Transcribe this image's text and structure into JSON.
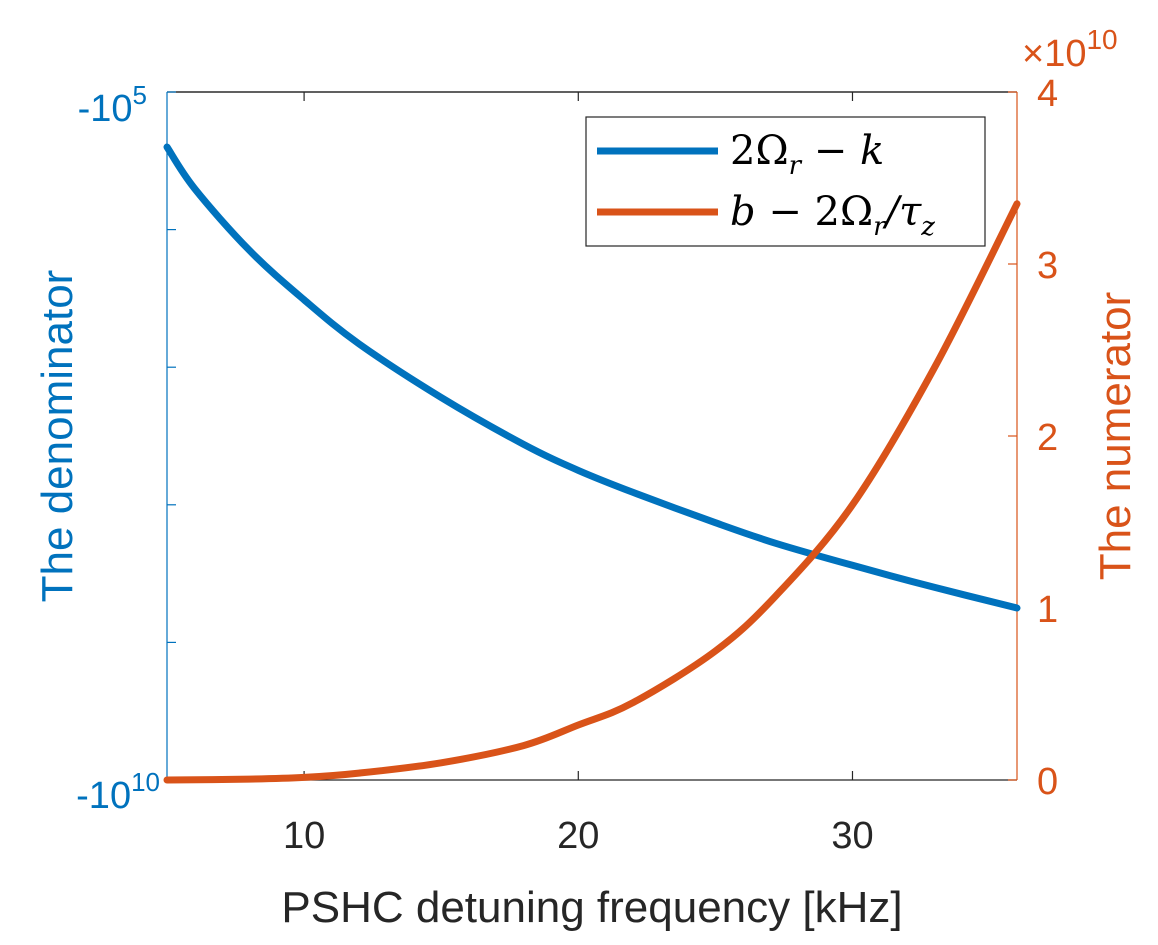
{
  "chart_data": {
    "type": "line",
    "xlabel": "PSHC detuning frequency [kHz]",
    "xlim": [
      5,
      36
    ],
    "xticks": [
      10,
      20,
      30
    ],
    "left_axis": {
      "label": "The denominator",
      "color": "#0072BD",
      "scale": "log (negative values)",
      "top_label_base": "-10",
      "top_label_exp": "5",
      "bottom_label_base": "-10",
      "bottom_label_exp": "10",
      "ylim": [
        -100000,
        -10000000000
      ],
      "log10_magnitude_range": [
        5,
        10
      ],
      "minor_ticks_log10": [
        6,
        7,
        8,
        9
      ]
    },
    "right_axis": {
      "label": "The numerator",
      "color": "#D95319",
      "multiplier_base": "×10",
      "multiplier_exp": "10",
      "ylim": [
        0,
        4
      ],
      "yticks": [
        0,
        1,
        2,
        3,
        4
      ]
    },
    "series": [
      {
        "name": "2Ωr − k",
        "legend_main": "2Ω",
        "legend_sub": "r",
        "legend_rest": " − k",
        "axis": "left",
        "color": "#0072BD",
        "x": [
          5,
          6,
          8,
          10,
          12,
          15,
          18,
          20,
          22,
          25,
          27.2,
          30,
          33,
          36
        ],
        "log10_magnitude": [
          5.4,
          5.7,
          6.15,
          6.51,
          6.83,
          7.22,
          7.56,
          7.75,
          7.91,
          8.13,
          8.28,
          8.44,
          8.6,
          8.75
        ]
      },
      {
        "name": "b − 2Ωr/τz",
        "legend_main1": "b",
        "legend_op": " − 2Ω",
        "legend_sub1": "r",
        "legend_slash": "/τ",
        "legend_sub2": "z",
        "axis": "right",
        "color": "#D95319",
        "x": [
          5,
          8,
          10,
          12,
          15,
          18,
          20,
          22,
          25,
          27.2,
          30,
          33,
          36
        ],
        "y": [
          0,
          0.005,
          0.015,
          0.04,
          0.1,
          0.2,
          0.32,
          0.45,
          0.75,
          1.07,
          1.6,
          2.4,
          3.35
        ]
      }
    ]
  }
}
